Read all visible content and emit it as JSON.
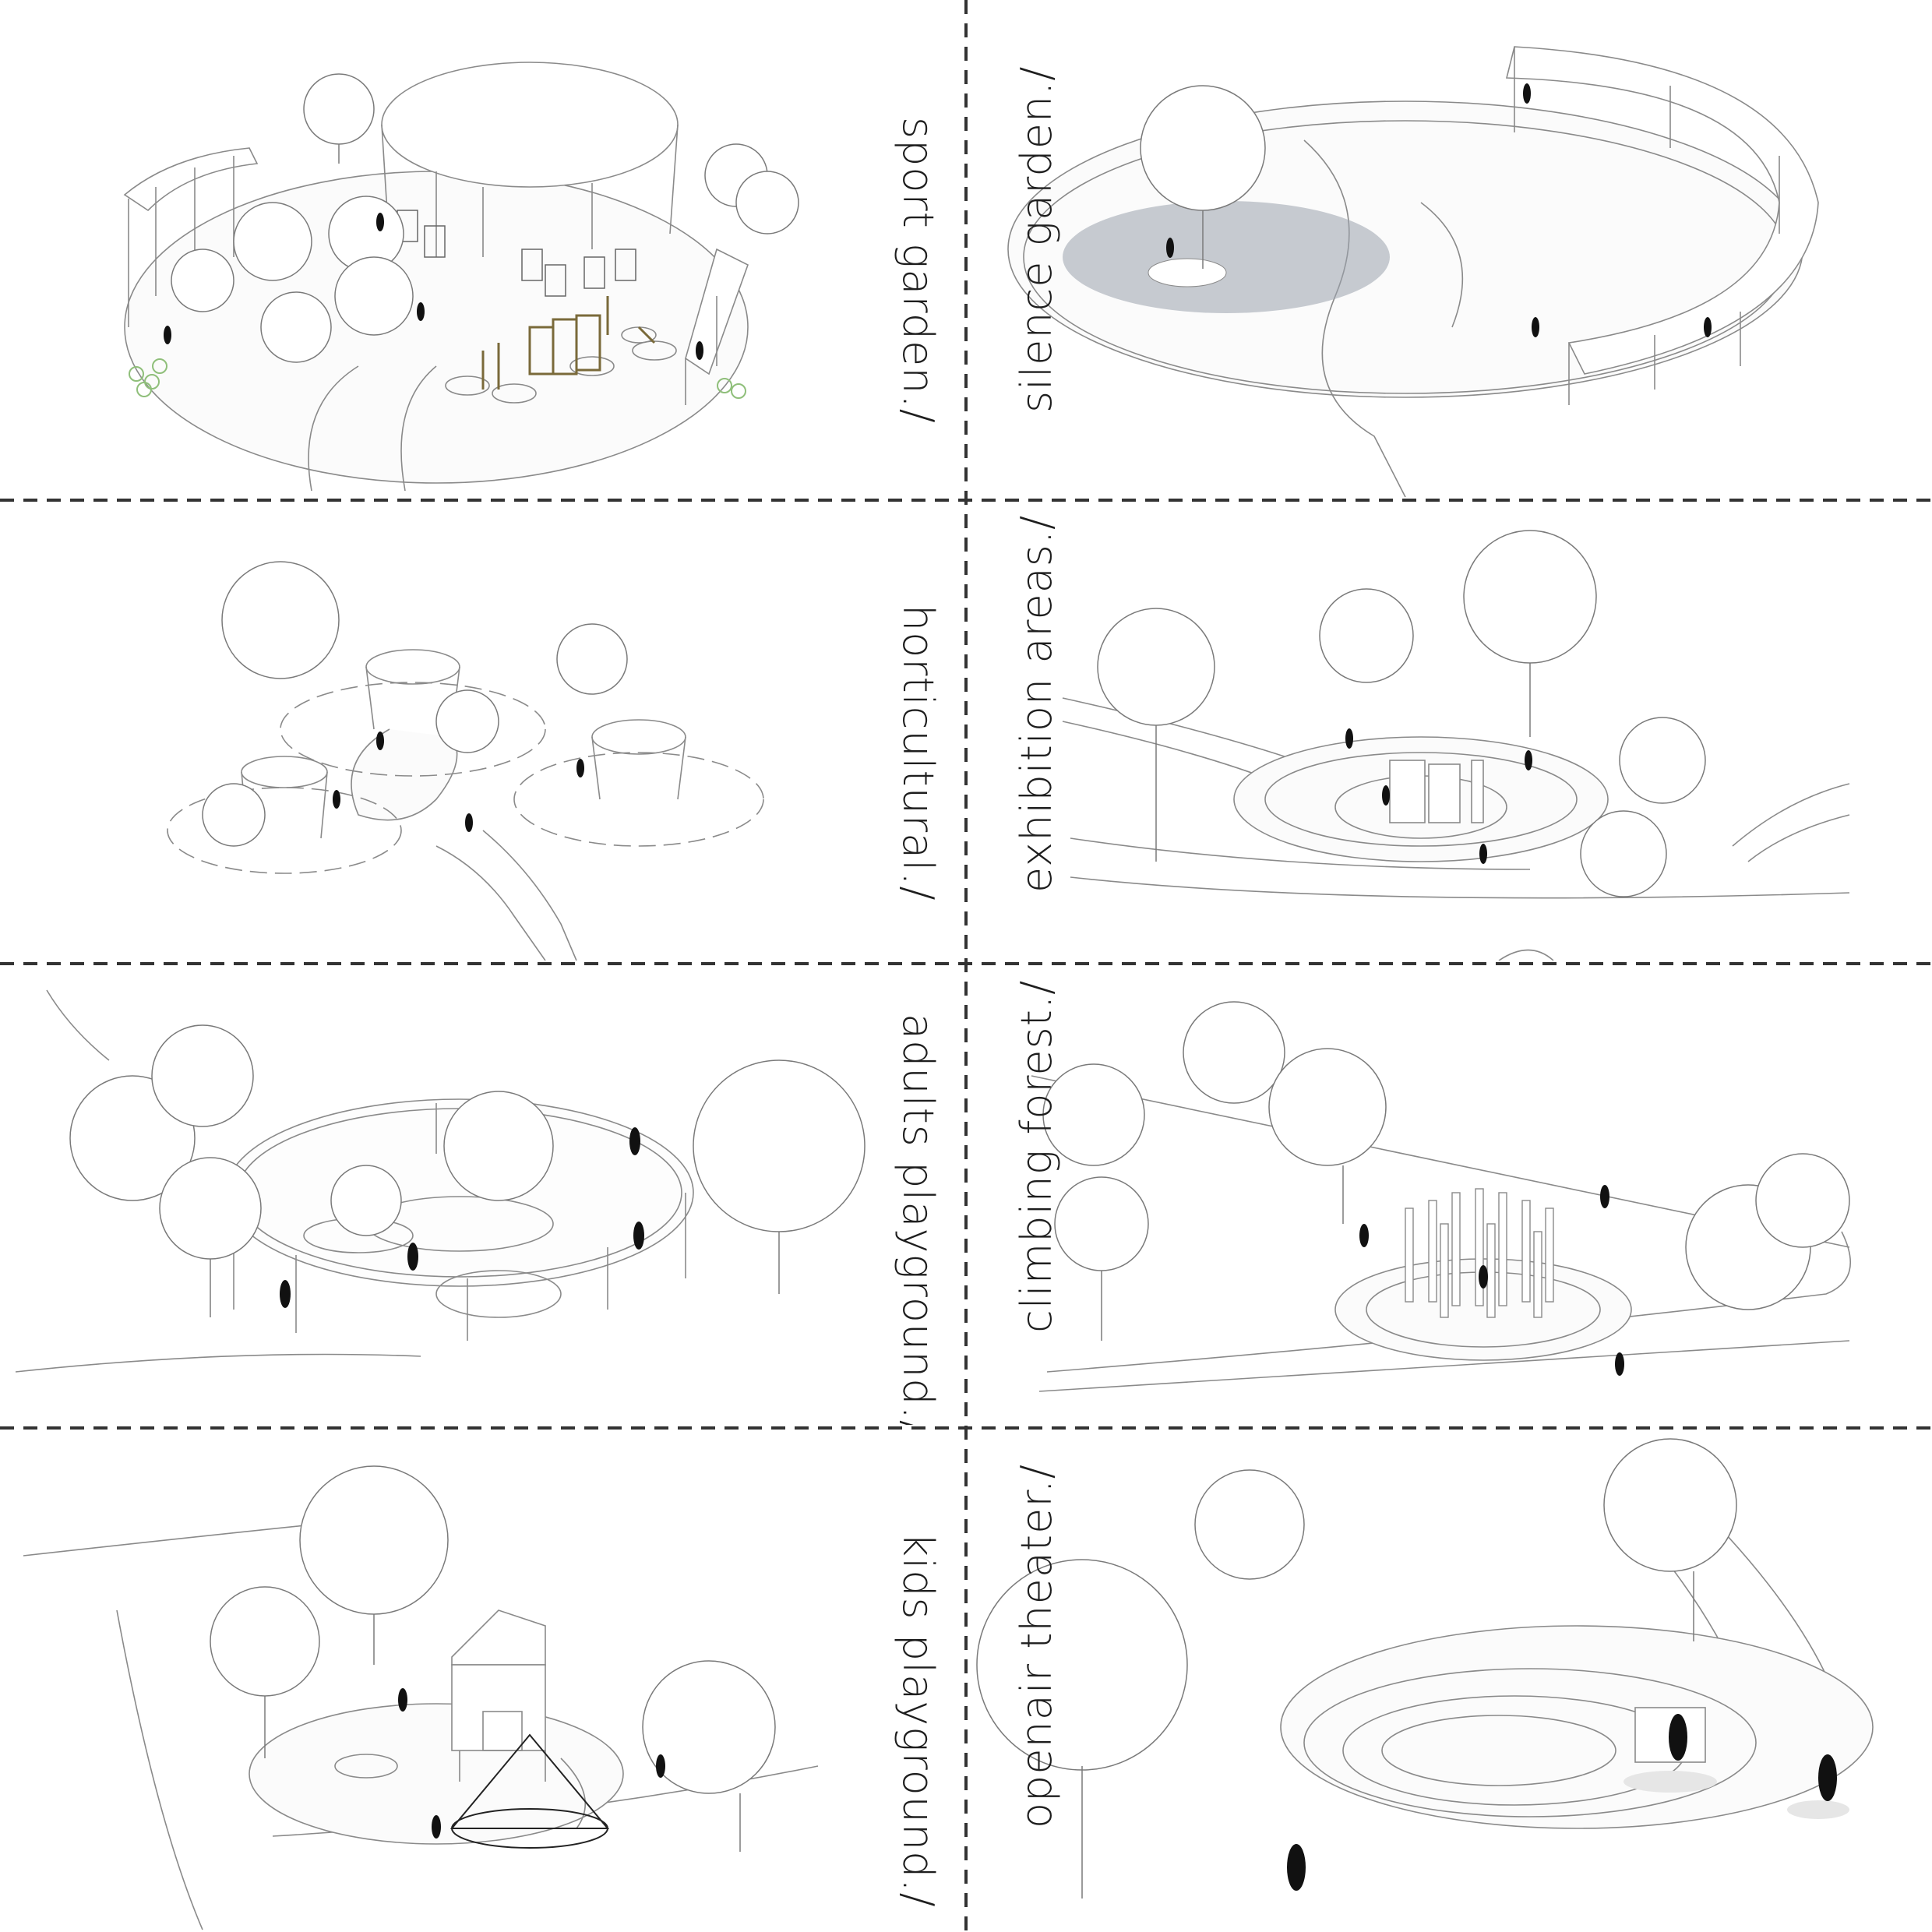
{
  "panels": [
    {
      "id": "sport",
      "label": "sport garden./"
    },
    {
      "id": "silence",
      "label": "silence garden./"
    },
    {
      "id": "horticultural",
      "label": "horticultural./"
    },
    {
      "id": "exhibition",
      "label": "exhibition areas./"
    },
    {
      "id": "adults",
      "label": "adults playground./"
    },
    {
      "id": "climbing",
      "label": "climbing forest./"
    },
    {
      "id": "kids",
      "label": "kids playground./"
    },
    {
      "id": "theater",
      "label": "openair theater./"
    }
  ],
  "colors": {
    "line": "#8a8a8a",
    "dark_line": "#3a3a3a",
    "tree_fill": "#ffffff",
    "shadow": "#ececec",
    "figure": "#111111",
    "water": "#9aa2ad",
    "bike": "#8fbf7a",
    "divider": "#333333"
  },
  "icons": [
    "tree-icon",
    "person-icon",
    "pergola-icon",
    "pavilion-icon",
    "bicycle-icon"
  ]
}
